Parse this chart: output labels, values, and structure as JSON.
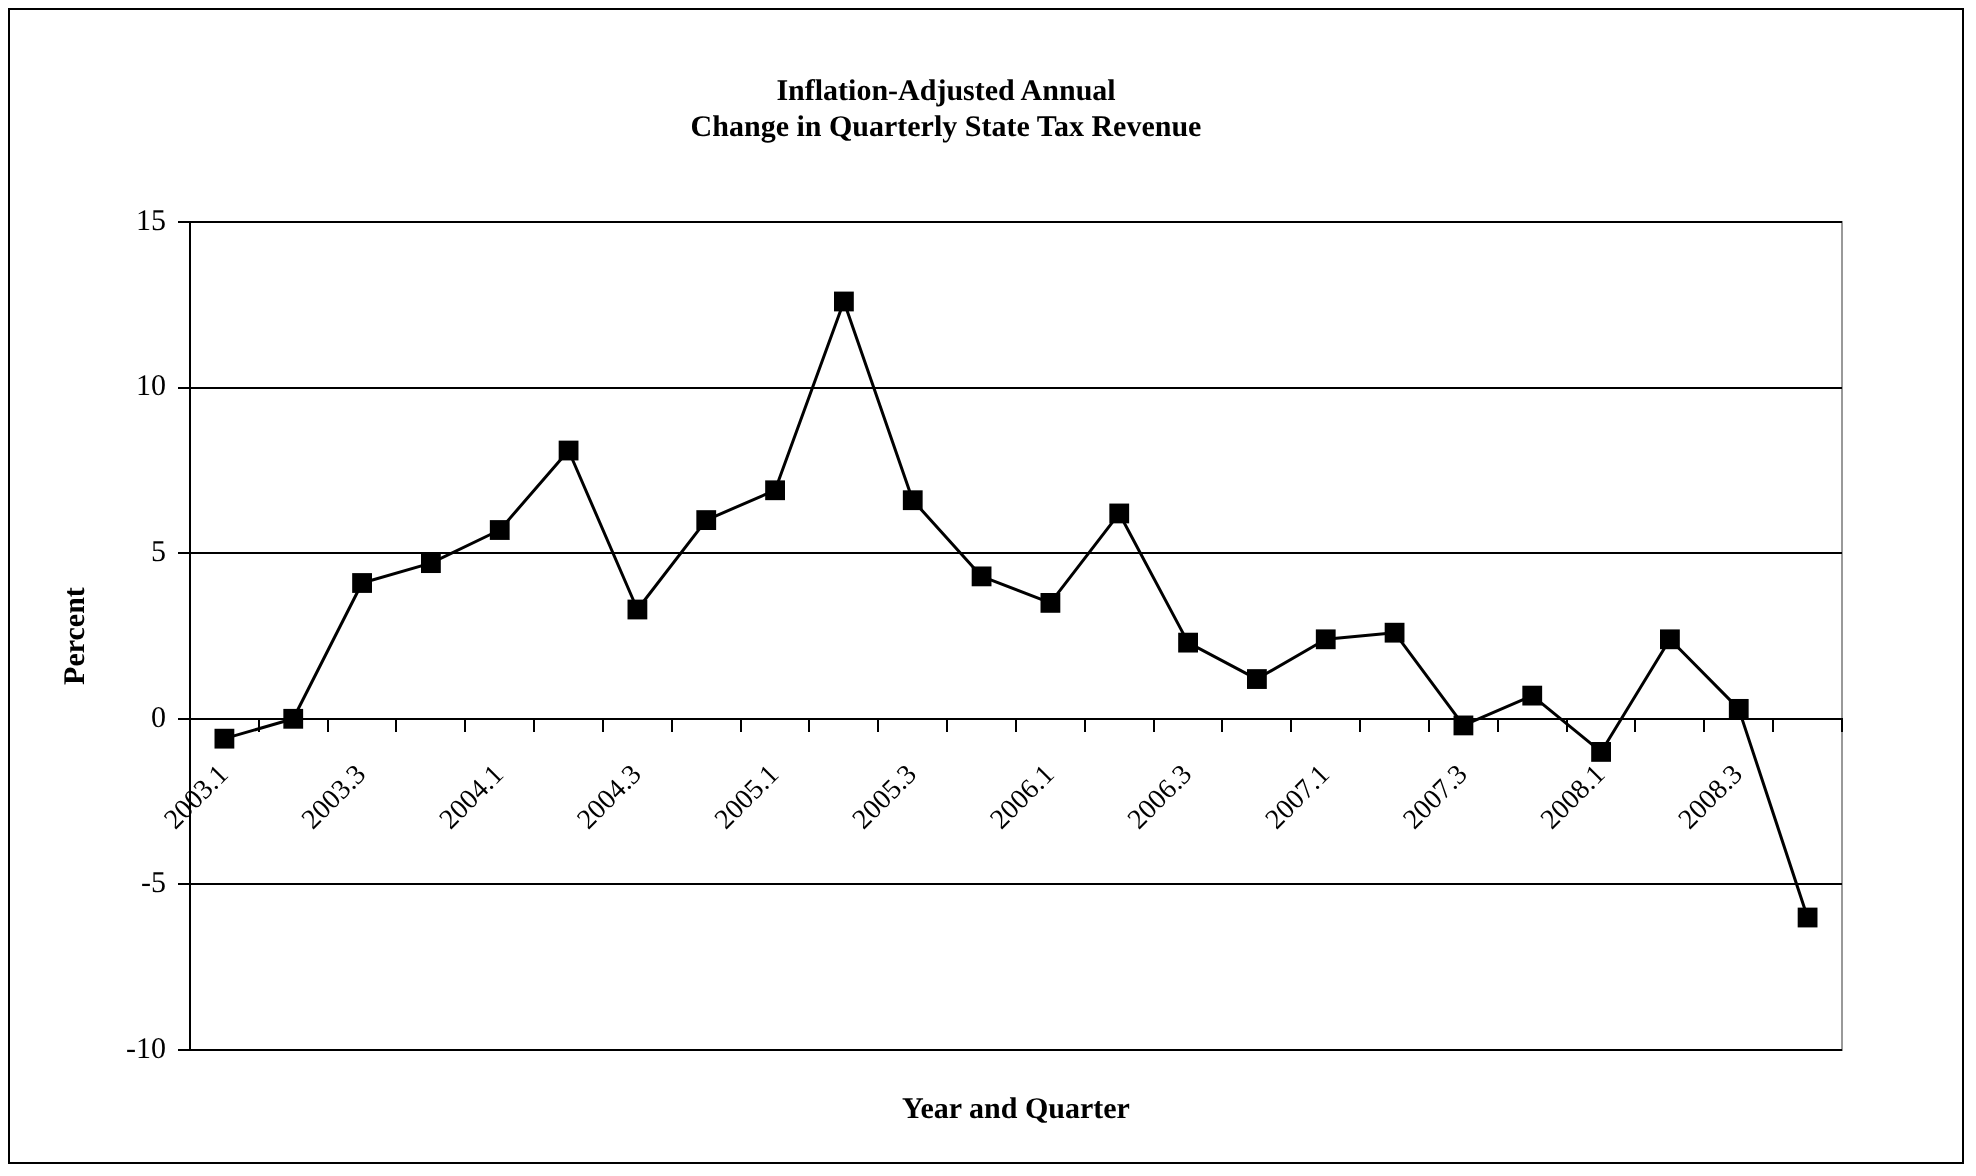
{
  "chart_data": {
    "type": "line",
    "title": "Inflation-Adjusted Annual\nChange in Quarterly State Tax Revenue",
    "xlabel": "Year and Quarter",
    "ylabel": "Percent",
    "categories": [
      "2003.1",
      null,
      "2003.3",
      null,
      "2004.1",
      null,
      "2004.3",
      null,
      "2005.1",
      null,
      "2005.3",
      null,
      "2006.1",
      null,
      "2006.3",
      null,
      "2007.1",
      null,
      "2007.3",
      null,
      "2008.1",
      null,
      "2008.3",
      null
    ],
    "series": [
      {
        "color": "#000000",
        "values": [
          -0.6,
          0.0,
          4.1,
          4.7,
          5.7,
          8.1,
          3.3,
          6.0,
          6.9,
          12.6,
          6.6,
          4.3,
          3.5,
          6.2,
          2.3,
          1.2,
          2.4,
          2.6,
          -0.2,
          0.7,
          -1.0,
          2.4,
          0.3,
          -6.0
        ]
      }
    ],
    "ylim": [
      -10,
      15
    ],
    "yticks": [
      -10,
      -5,
      0,
      5,
      10,
      15
    ],
    "grid": "y",
    "legend": false,
    "marker": "square",
    "line_style": "solid"
  }
}
